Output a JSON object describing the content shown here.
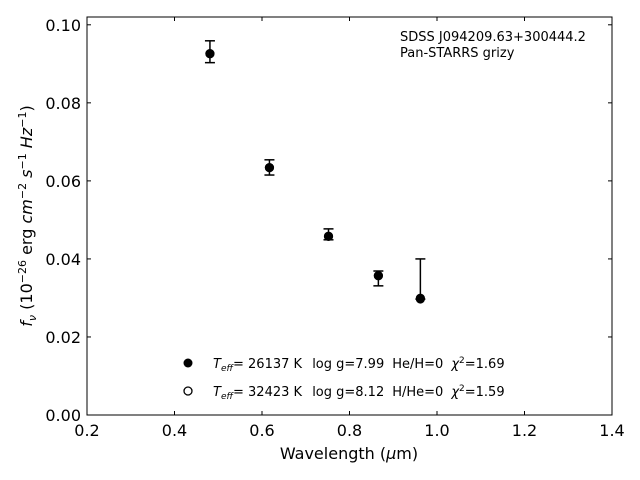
{
  "chart_data": {
    "type": "scatter",
    "xlabel": "Wavelength (μm)",
    "ylabel": "fν (10⁻²⁶ erg cm⁻² s⁻¹ Hz⁻¹)",
    "xlim": [
      0.2,
      1.4
    ],
    "ylim": [
      0,
      0.102
    ],
    "xticks": [
      "0.2",
      "0.4",
      "0.6",
      "0.8",
      "1.0",
      "1.2",
      "1.4"
    ],
    "yticks": [
      "0.00",
      "0.02",
      "0.04",
      "0.06",
      "0.08",
      "0.10"
    ],
    "annotation": [
      "SDSS J094209.63+300444.2",
      "Pan-STARRS grizy"
    ],
    "observed": {
      "x": [
        0.481,
        0.617,
        0.752,
        0.866,
        0.962
      ],
      "y": [
        0.0928,
        0.0636,
        0.0459,
        0.0359,
        0.0297
      ],
      "err_low": [
        0.0903,
        0.0615,
        0.0449,
        0.0331,
        0.0297
      ],
      "err_high": [
        0.0959,
        0.0654,
        0.0477,
        0.0369,
        0.04
      ]
    },
    "series": [
      {
        "name": "Teff= 26137 K  log g=7.99  He/H=0  χ²=1.69",
        "marker": "filled",
        "x": [
          0.481,
          0.617,
          0.752,
          0.866,
          0.962
        ],
        "y": [
          0.0926,
          0.0634,
          0.0458,
          0.0357,
          0.0297
        ],
        "label_parts": {
          "teff": "26137 K",
          "logg": "log g=7.99",
          "comp": "He/H=0",
          "chi2": "=1.69"
        }
      },
      {
        "name": "Teff= 32423 K  log g=8.12  H/He=0  χ²=1.59",
        "marker": "open",
        "x": [
          0.481,
          0.617,
          0.752,
          0.866,
          0.962
        ],
        "y": [
          0.0926,
          0.0634,
          0.0458,
          0.0357,
          0.0299
        ],
        "label_parts": {
          "teff": "32423 K",
          "logg": "log g=8.12",
          "comp": "H/He=0",
          "chi2": "=1.59"
        }
      }
    ],
    "legend_location": "lower-center"
  }
}
